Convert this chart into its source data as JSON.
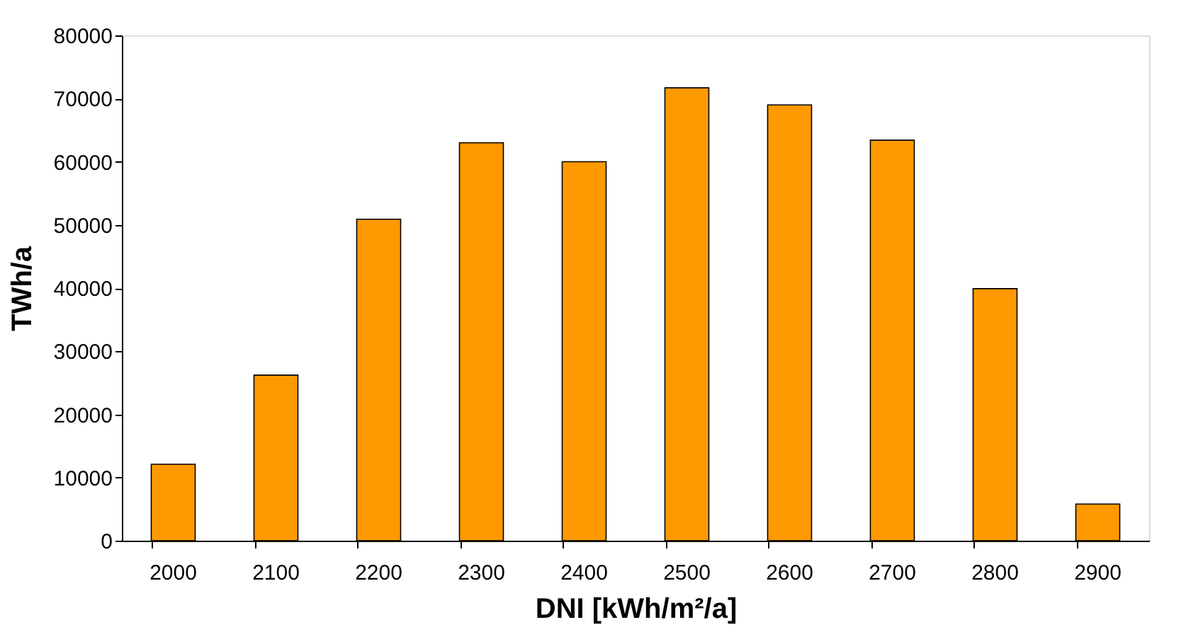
{
  "chart_data": {
    "type": "bar",
    "xlabel": "DNI [kWh/m²/a]",
    "ylabel": "TWh/a",
    "categories": [
      "2000",
      "2100",
      "2200",
      "2300",
      "2400",
      "2500",
      "2600",
      "2700",
      "2800",
      "2900"
    ],
    "values": [
      12100,
      26200,
      50900,
      63000,
      60000,
      71700,
      69000,
      63400,
      39900,
      5800
    ],
    "color": "#ff9900",
    "ylim": [
      0,
      80000
    ],
    "yticks": [
      0,
      10000,
      20000,
      30000,
      40000,
      50000,
      60000,
      70000,
      80000
    ],
    "grid": false
  }
}
